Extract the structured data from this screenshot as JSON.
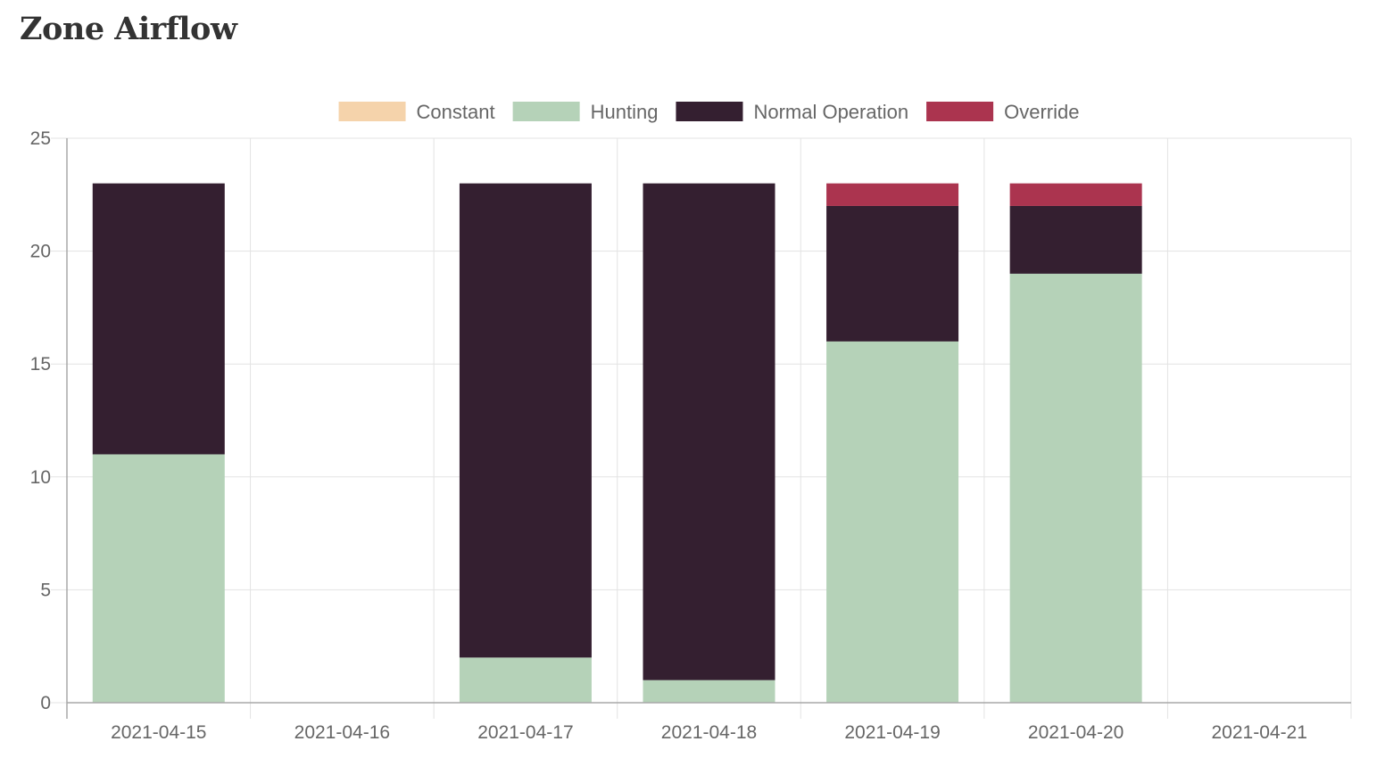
{
  "page": {
    "title": "Zone Airflow"
  },
  "chart_data": {
    "type": "bar",
    "stacked": true,
    "title": "",
    "xlabel": "",
    "ylabel": "",
    "categories": [
      "2021-04-15",
      "2021-04-16",
      "2021-04-17",
      "2021-04-18",
      "2021-04-19",
      "2021-04-20",
      "2021-04-21"
    ],
    "series": [
      {
        "name": "Constant",
        "color": "#f5d3ab",
        "values": [
          0,
          0,
          0,
          0,
          0,
          0,
          0
        ]
      },
      {
        "name": "Hunting",
        "color": "#b5d2b8",
        "values": [
          11,
          0,
          2,
          1,
          16,
          19,
          0
        ]
      },
      {
        "name": "Normal Operation",
        "color": "#341f30",
        "values": [
          12,
          0,
          21,
          22,
          6,
          3,
          0
        ]
      },
      {
        "name": "Override",
        "color": "#ab344f",
        "values": [
          0,
          0,
          0,
          0,
          1,
          1,
          0
        ]
      }
    ],
    "ylim": [
      0,
      25
    ],
    "yticks": [
      0,
      5,
      10,
      15,
      20,
      25
    ],
    "grid": true,
    "legend_position": "top-center"
  }
}
